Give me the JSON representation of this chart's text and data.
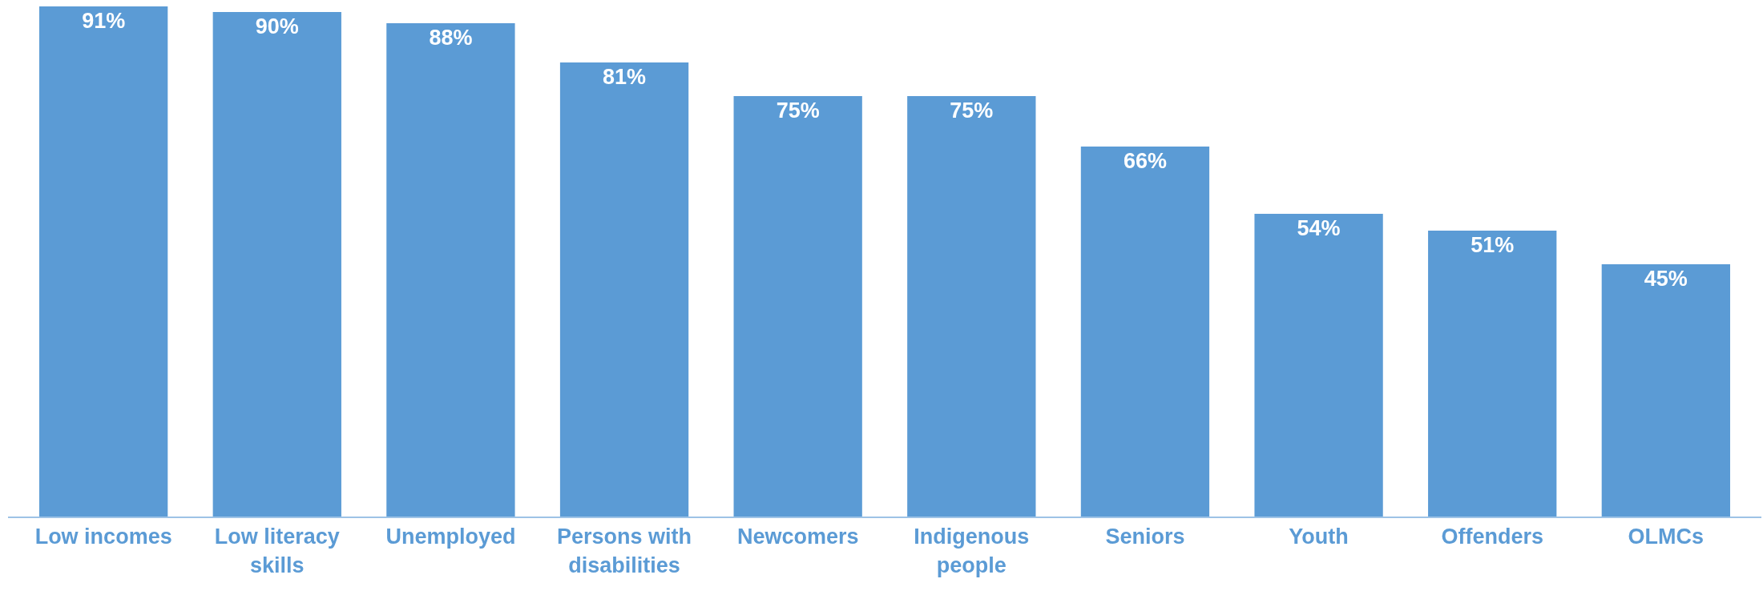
{
  "chart_data": {
    "type": "bar",
    "categories": [
      "Low incomes",
      "Low literacy skills",
      "Unemployed",
      "Persons with disabilities",
      "Newcomers",
      "Indigenous people",
      "Seniors",
      "Youth",
      "Offenders",
      "OLMCs"
    ],
    "values": [
      91,
      90,
      88,
      81,
      75,
      75,
      66,
      54,
      51,
      45
    ],
    "value_labels": [
      "91%",
      "90%",
      "88%",
      "81%",
      "75%",
      "75%",
      "66%",
      "54%",
      "51%",
      "45%"
    ],
    "color": "#5b9bd5"
  }
}
